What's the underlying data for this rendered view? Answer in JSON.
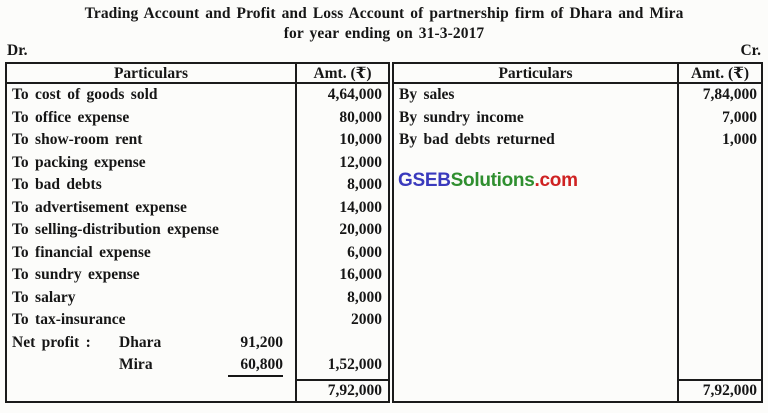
{
  "title": {
    "line1": "Trading Account and Profit and Loss Account of partnership firm of Dhara and Mira",
    "line2": "for year ending on 31-3-2017"
  },
  "labels": {
    "dr": "Dr.",
    "cr": "Cr."
  },
  "debit": {
    "headers": {
      "particulars": "Particulars",
      "amount": "Amt. (₹)"
    },
    "rows": [
      {
        "label": "To cost of goods sold",
        "amount": "4,64,000"
      },
      {
        "label": "To office expense",
        "amount": "80,000"
      },
      {
        "label": "To show-room rent",
        "amount": "10,000"
      },
      {
        "label": "To packing expense",
        "amount": "12,000"
      },
      {
        "label": "To bad debts",
        "amount": "8,000"
      },
      {
        "label": "To advertisement expense",
        "amount": "14,000"
      },
      {
        "label": "To selling-distribution expense",
        "amount": "20,000"
      },
      {
        "label": "To financial expense",
        "amount": "6,000"
      },
      {
        "label": "To sundry expense",
        "amount": "16,000"
      },
      {
        "label": "To salary",
        "amount": "8,000"
      },
      {
        "label": "To tax-insurance",
        "amount": "2000"
      },
      {
        "label": "Net profit :",
        "partner": "Dhara",
        "share": "91,200",
        "amount": ""
      },
      {
        "label": "",
        "partner": "Mira",
        "share": "60,800",
        "share_underlined": true,
        "amount": "1,52,000"
      }
    ],
    "total": "7,92,000"
  },
  "credit": {
    "headers": {
      "particulars": "Particulars",
      "amount": "Amt. (₹)"
    },
    "rows": [
      {
        "label": "By sales",
        "amount": "7,84,000"
      },
      {
        "label": "By sundry income",
        "amount": "7,000"
      },
      {
        "label": "By bad debts returned",
        "amount": "1,000"
      }
    ],
    "total": "7,92,000"
  },
  "watermark": {
    "part1": "GSEB",
    "part2": "Solutions",
    "part3": ".com",
    "colors": {
      "part1": "#3a3abd",
      "part2": "#2f8f2f",
      "part3": "#cf2222"
    }
  },
  "colors": {
    "ink": "#161616",
    "border": "#1b1b1b",
    "paper": "#fcfcfa"
  }
}
